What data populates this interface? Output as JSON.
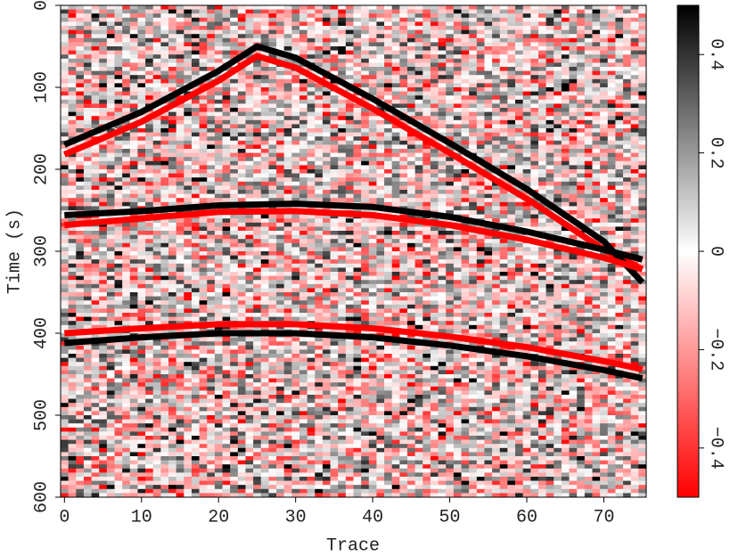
{
  "chart_data": {
    "type": "heatmap",
    "xlabel": "Trace",
    "ylabel": "Time (s)",
    "xlim": [
      -0.5,
      75.5
    ],
    "ylim": [
      0,
      600
    ],
    "xticks": [
      0,
      10,
      20,
      30,
      40,
      50,
      60,
      70
    ],
    "yticks": [
      0,
      100,
      200,
      300,
      400,
      500,
      600
    ],
    "clim": [
      -0.5,
      0.5
    ],
    "cticks": [
      {
        "value": -0.4,
        "label": "−0.4"
      },
      {
        "value": -0.2,
        "label": "−0.2"
      },
      0,
      0.2,
      0.4
    ],
    "colormap": [
      "#ff0000",
      "#ffffff",
      "#000000"
    ],
    "series": [
      {
        "color": "#ff0000",
        "x": [
          0,
          10,
          20,
          25,
          30,
          40,
          50,
          60,
          70,
          75
        ],
        "values": [
          182,
          142,
          92,
          62,
          76,
          126,
          180,
          236,
          298,
          322
        ]
      },
      {
        "color": "#000000",
        "x": [
          0,
          10,
          20,
          25,
          30,
          40,
          50,
          60,
          70,
          75
        ],
        "values": [
          170,
          130,
          80,
          50,
          64,
          114,
          168,
          224,
          288,
          338
        ]
      },
      {
        "color": "#ff0000",
        "x": [
          0,
          10,
          20,
          30,
          40,
          50,
          60,
          70,
          75
        ],
        "values": [
          268,
          260,
          252,
          251,
          256,
          268,
          286,
          308,
          322
        ]
      },
      {
        "color": "#000000",
        "x": [
          0,
          10,
          20,
          30,
          40,
          50,
          60,
          70,
          75
        ],
        "values": [
          256,
          251,
          244,
          242,
          246,
          258,
          276,
          298,
          310
        ]
      },
      {
        "color": "#ff0000",
        "x": [
          0,
          10,
          20,
          30,
          40,
          50,
          60,
          70,
          75
        ],
        "values": [
          400,
          394,
          389,
          389,
          394,
          404,
          417,
          434,
          444
        ]
      },
      {
        "color": "#000000",
        "x": [
          0,
          10,
          20,
          30,
          40,
          50,
          60,
          70,
          75
        ],
        "values": [
          412,
          405,
          400,
          400,
          405,
          415,
          428,
          445,
          455
        ]
      }
    ]
  }
}
